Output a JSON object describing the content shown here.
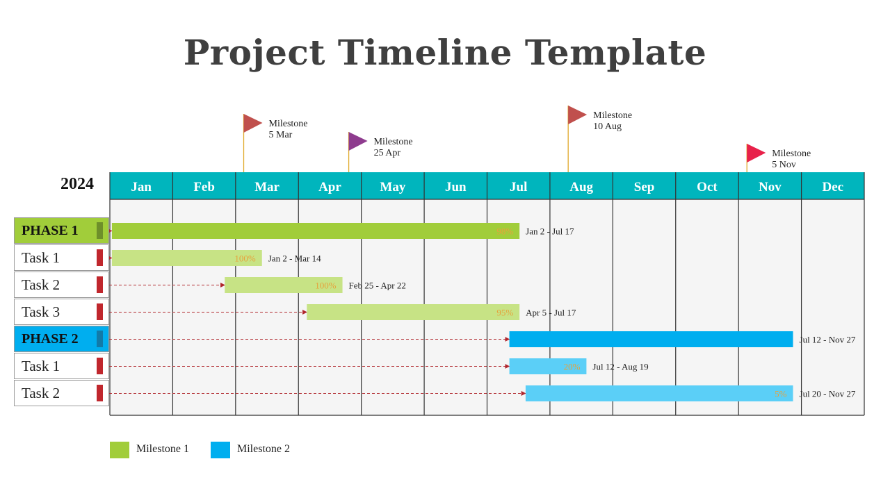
{
  "title": "Project Timeline Template",
  "colors": {
    "header": "#00b5bd",
    "phase1": "#a1cd3a",
    "phase1_task": "#c7e385",
    "phase2": "#00aeef",
    "phase2_task": "#5bcff7",
    "phase1_marker": "#6e8f2a",
    "phase2_marker": "#127aa8",
    "task_marker": "#c0272d",
    "percent_text": "#e6a23c",
    "dash": "#b0272d"
  },
  "chart_data": {
    "type": "gantt",
    "year": "2024",
    "months": [
      "Jan",
      "Feb",
      "Mar",
      "Apr",
      "May",
      "Jun",
      "Jul",
      "Aug",
      "Sep",
      "Oct",
      "Nov",
      "Dec"
    ],
    "rows": [
      {
        "label": "PHASE 1",
        "kind": "phase",
        "group": 1,
        "start": "2024-01-02",
        "end": "2024-07-17",
        "percent": "98%",
        "range": "Jan 2 - Jul 17"
      },
      {
        "label": "Task 1",
        "kind": "task",
        "group": 1,
        "start": "2024-01-02",
        "end": "2024-03-14",
        "percent": "100%",
        "range": "Jan 2 - Mar 14"
      },
      {
        "label": "Task 2",
        "kind": "task",
        "group": 1,
        "start": "2024-02-25",
        "end": "2024-04-22",
        "percent": "100%",
        "range": "Feb 25 - Apr 22"
      },
      {
        "label": "Task 3",
        "kind": "task",
        "group": 1,
        "start": "2024-04-05",
        "end": "2024-07-17",
        "percent": "95%",
        "range": "Apr 5 - Jul 17"
      },
      {
        "label": "PHASE 2",
        "kind": "phase",
        "group": 2,
        "start": "2024-07-12",
        "end": "2024-11-27",
        "percent": "",
        "range": "Jul 12 - Nov 27"
      },
      {
        "label": "Task 1",
        "kind": "task",
        "group": 2,
        "start": "2024-07-12",
        "end": "2024-08-19",
        "percent": "20%",
        "range": "Jul 12 - Aug 19"
      },
      {
        "label": "Task 2",
        "kind": "task",
        "group": 2,
        "start": "2024-07-20",
        "end": "2024-11-27",
        "percent": "5%",
        "range": "Jul 20 - Nov 27"
      }
    ],
    "milestones": [
      {
        "label": "Milestone",
        "date_text": "5 Mar",
        "date": "2024-03-05",
        "color": "#c0504d"
      },
      {
        "label": "Milestone",
        "date_text": "25 Apr",
        "date": "2024-04-25",
        "color": "#8e3b8e"
      },
      {
        "label": "Milestone",
        "date_text": "10 Aug",
        "date": "2024-08-10",
        "color": "#c0504d"
      },
      {
        "label": "Milestone",
        "date_text": "5 Nov",
        "date": "2024-11-05",
        "color": "#e8214a"
      }
    ],
    "legend": [
      {
        "label": "Milestone 1",
        "color": "#a1cd3a"
      },
      {
        "label": "Milestone 2",
        "color": "#00aeef"
      }
    ]
  }
}
